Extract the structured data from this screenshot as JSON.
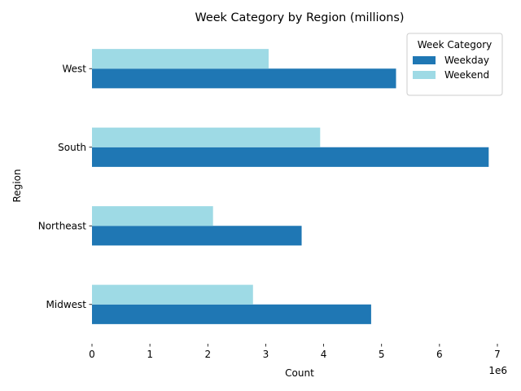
{
  "chart_data": {
    "type": "bar",
    "orientation": "horizontal",
    "title": "Week Category by Region (millions)",
    "xlabel": "Count",
    "ylabel": "Region",
    "x_offset_label": "1e6",
    "x_scale": 1000000,
    "xlim": [
      0,
      7000000
    ],
    "x_ticks": [
      0,
      1000000,
      2000000,
      3000000,
      4000000,
      5000000,
      6000000,
      7000000
    ],
    "x_tick_labels": [
      "0",
      "1",
      "2",
      "3",
      "4",
      "5",
      "6",
      "7"
    ],
    "categories": [
      "Midwest",
      "Northeast",
      "South",
      "West"
    ],
    "series": [
      {
        "name": "Weekday",
        "color": "#1f77b4",
        "values": [
          4820000,
          3620000,
          6850000,
          5250000
        ]
      },
      {
        "name": "Weekend",
        "color": "#9edae5",
        "values": [
          2780000,
          2090000,
          3940000,
          3050000
        ]
      }
    ],
    "legend": {
      "title": "Week Category",
      "placement": "top-right"
    },
    "grid": false
  }
}
